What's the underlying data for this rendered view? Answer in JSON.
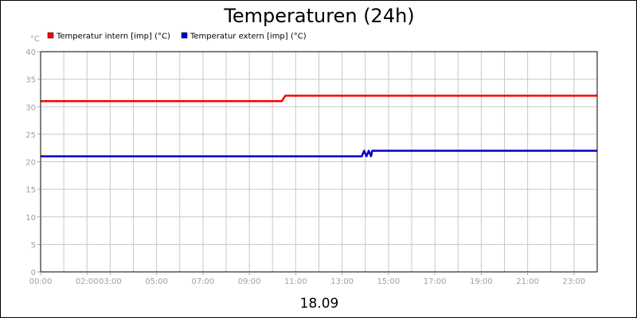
{
  "chart_data": {
    "type": "line",
    "title": "Temperaturen (24h)",
    "unit_label": "°C",
    "date_label": "18.09",
    "ylim": [
      0,
      40
    ],
    "y_ticks": [
      0,
      5,
      10,
      15,
      20,
      25,
      30,
      35,
      40
    ],
    "y_tick_labels": [
      "0",
      "5",
      "10",
      "15",
      "20",
      "25",
      "30",
      "35",
      "40"
    ],
    "xlim": [
      0,
      24
    ],
    "x_ticks": [
      0,
      2,
      3,
      5,
      7,
      9,
      11,
      13,
      15,
      17,
      19,
      21,
      23
    ],
    "x_tick_labels": [
      "00:00",
      "02:00",
      "03:00",
      "05:00",
      "07:00",
      "09:00",
      "11:00",
      "13:00",
      "15:00",
      "17:00",
      "19:00",
      "21:00",
      "23:00"
    ],
    "grid": true,
    "legend_position": "top-left",
    "series": [
      {
        "name": "Temperatur intern [imp] (°C)",
        "color": "#ff0000",
        "x": [
          0,
          10.4,
          10.55,
          24
        ],
        "y": [
          31,
          31,
          32,
          32
        ]
      },
      {
        "name": "Temperatur extern [imp] (°C)",
        "color": "#0000cc",
        "x": [
          0,
          13.85,
          13.9,
          13.95,
          14.0,
          14.05,
          14.1,
          14.15,
          14.2,
          14.25,
          14.3,
          14.4,
          24
        ],
        "y": [
          21,
          21,
          21.5,
          22,
          21.5,
          21,
          21.5,
          22,
          21.5,
          21,
          22,
          22,
          22
        ]
      }
    ]
  }
}
